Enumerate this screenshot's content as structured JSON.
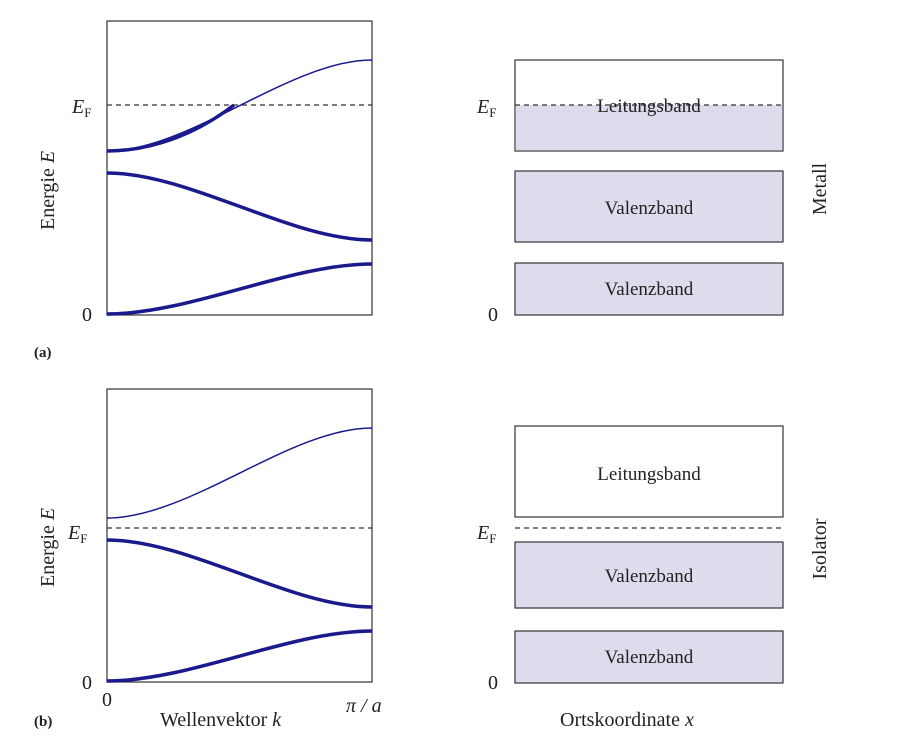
{
  "colors": {
    "band_curve": "#1a1a8c",
    "band_fill": "#dcdcec",
    "frame": "#333333",
    "text": "#222222"
  },
  "axes": {
    "energy_label": "Energie",
    "energy_symbol": "E",
    "zero": "0",
    "k_zero": "0",
    "k_max": "π / a",
    "k_label": "Wellenvektor",
    "k_symbol": "k",
    "x_label": "Ortskoordinate",
    "x_symbol": "x",
    "fermi_main": "E",
    "fermi_sub": "F"
  },
  "panels": [
    {
      "tag": "(a)",
      "material": "Metall",
      "dispersion_bands": [
        {
          "k": [
            0,
            1
          ],
          "e_start": 0.0,
          "e_end": 0.17,
          "weight": "bold"
        },
        {
          "k": [
            0,
            1
          ],
          "e_start": 0.48,
          "e_end": 0.25,
          "weight": "bold"
        },
        {
          "k": [
            0,
            1
          ],
          "e_start": 0.56,
          "e_end": 0.87,
          "weight": "thin",
          "filled_until_k": 0.39
        }
      ],
      "fermi_level": 0.72,
      "bands": [
        {
          "label": "Leitungsband",
          "filled": "partial"
        },
        {
          "label": "Valenzband",
          "filled": true
        },
        {
          "label": "Valenzband",
          "filled": true
        }
      ]
    },
    {
      "tag": "(b)",
      "material": "Isolator",
      "dispersion_bands": [
        {
          "k": [
            0,
            1
          ],
          "e_start": 0.0,
          "e_end": 0.17,
          "weight": "bold"
        },
        {
          "k": [
            0,
            1
          ],
          "e_start": 0.48,
          "e_end": 0.25,
          "weight": "bold"
        },
        {
          "k": [
            0,
            1
          ],
          "e_start": 0.56,
          "e_end": 0.87,
          "weight": "thin"
        }
      ],
      "fermi_level": 0.525,
      "bands": [
        {
          "label": "Leitungsband",
          "filled": false
        },
        {
          "label": "Valenzband",
          "filled": true
        },
        {
          "label": "Valenzband",
          "filled": true
        }
      ]
    }
  ]
}
